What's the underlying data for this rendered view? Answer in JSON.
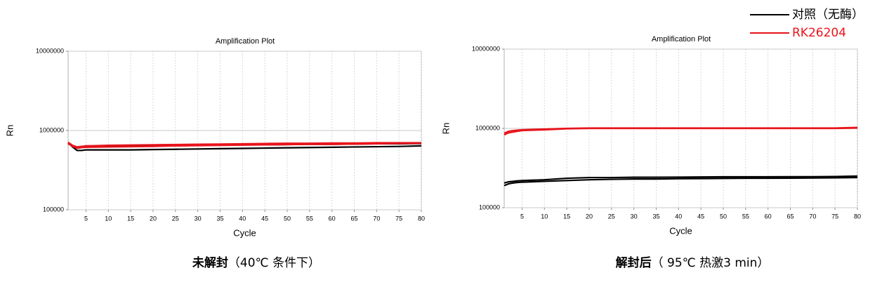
{
  "legend": [
    {
      "name": "对照（无酶）",
      "color": "#000000"
    },
    {
      "name": "RK26204",
      "color": "#e8141c"
    }
  ],
  "chart_data": [
    {
      "type": "line",
      "title": "Amplification Plot",
      "xlabel": "Cycle",
      "ylabel": "Rn",
      "log_y": true,
      "grid": true,
      "caption_bold": "未解封",
      "caption": "（40℃ 条件下）",
      "x": [
        1,
        2,
        3,
        4,
        5,
        10,
        15,
        20,
        25,
        30,
        35,
        40,
        45,
        50,
        55,
        60,
        65,
        70,
        75,
        80
      ],
      "xlim": [
        1,
        80
      ],
      "xticks": [
        5,
        10,
        15,
        20,
        25,
        30,
        35,
        40,
        45,
        50,
        55,
        60,
        65,
        70,
        75,
        80
      ],
      "ylim": [
        100000,
        10000000
      ],
      "yticks": [
        100000,
        1000000,
        10000000
      ],
      "series": [
        {
          "color": "#000000",
          "values": [
            700000,
            620000,
            560000,
            560000,
            570000,
            570000,
            570000,
            575000,
            580000,
            585000,
            590000,
            595000,
            600000,
            605000,
            610000,
            615000,
            620000,
            625000,
            630000,
            640000
          ]
        },
        {
          "color": "#000000",
          "values": [
            680000,
            640000,
            600000,
            610000,
            620000,
            630000,
            635000,
            640000,
            645000,
            650000,
            655000,
            660000,
            660000,
            665000,
            670000,
            670000,
            675000,
            680000,
            680000,
            685000
          ]
        },
        {
          "color": "#e8141c",
          "values": [
            690000,
            630000,
            600000,
            610000,
            615000,
            620000,
            625000,
            630000,
            640000,
            645000,
            650000,
            655000,
            660000,
            665000,
            670000,
            670000,
            675000,
            680000,
            685000,
            690000
          ]
        },
        {
          "color": "#e8141c",
          "values": [
            710000,
            650000,
            620000,
            630000,
            640000,
            650000,
            655000,
            660000,
            665000,
            670000,
            675000,
            680000,
            685000,
            690000,
            690000,
            695000,
            695000,
            700000,
            700000,
            700000
          ]
        }
      ]
    },
    {
      "type": "line",
      "title": "Amplification Plot",
      "xlabel": "Cycle",
      "ylabel": "Rn",
      "log_y": true,
      "grid": true,
      "caption_bold": "解封后",
      "caption": "（ 95℃ 热激3 min）",
      "x": [
        1,
        2,
        3,
        4,
        5,
        10,
        15,
        20,
        25,
        30,
        35,
        40,
        45,
        50,
        55,
        60,
        65,
        70,
        75,
        80
      ],
      "xlim": [
        1,
        80
      ],
      "xticks": [
        5,
        10,
        15,
        20,
        25,
        30,
        35,
        40,
        45,
        50,
        55,
        60,
        65,
        70,
        75,
        80
      ],
      "ylim": [
        100000,
        10000000
      ],
      "yticks": [
        100000,
        1000000,
        10000000
      ],
      "series": [
        {
          "color": "#e8141c",
          "values": [
            830000,
            880000,
            900000,
            920000,
            940000,
            960000,
            990000,
            1000000,
            1000000,
            1000000,
            1000000,
            1000000,
            1000000,
            1000000,
            1000000,
            1000000,
            1000000,
            1000000,
            1000000,
            1010000
          ]
        },
        {
          "color": "#e8141c",
          "values": [
            870000,
            920000,
            940000,
            950000,
            960000,
            980000,
            1000000,
            1010000,
            1010000,
            1010000,
            1010000,
            1010000,
            1010000,
            1010000,
            1010000,
            1010000,
            1010000,
            1010000,
            1010000,
            1030000
          ]
        },
        {
          "color": "#000000",
          "values": [
            190000,
            200000,
            205000,
            208000,
            210000,
            215000,
            220000,
            225000,
            228000,
            230000,
            230000,
            232000,
            233000,
            234000,
            235000,
            235000,
            236000,
            237000,
            238000,
            240000
          ]
        },
        {
          "color": "#000000",
          "values": [
            205000,
            212000,
            215000,
            218000,
            220000,
            225000,
            235000,
            240000,
            240000,
            242000,
            242000,
            243000,
            244000,
            245000,
            245000,
            245000,
            246000,
            246000,
            247000,
            250000
          ]
        }
      ]
    }
  ]
}
